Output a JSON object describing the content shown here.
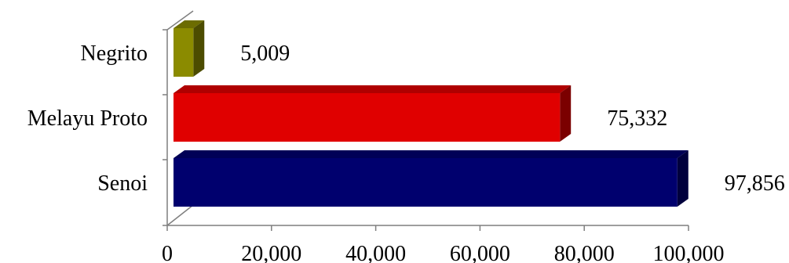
{
  "chart_data": {
    "type": "bar",
    "orientation": "horizontal",
    "style": "3d",
    "categories": [
      "Negrito",
      "Melayu Proto",
      "Senoi"
    ],
    "values": [
      5009,
      75332,
      97856
    ],
    "value_labels": [
      "5,009",
      "75,332",
      "97,856"
    ],
    "colors": [
      "#8b8b00",
      "#e00000",
      "#00006e"
    ],
    "xlim": [
      0,
      100000
    ],
    "x_ticks": [
      0,
      20000,
      40000,
      60000,
      80000,
      100000
    ],
    "x_tick_labels": [
      "0",
      "20,000",
      "40,000",
      "60,000",
      "80,000",
      "100,000"
    ],
    "title": "",
    "xlabel": "",
    "ylabel": "",
    "grid": false,
    "legend": "none"
  }
}
